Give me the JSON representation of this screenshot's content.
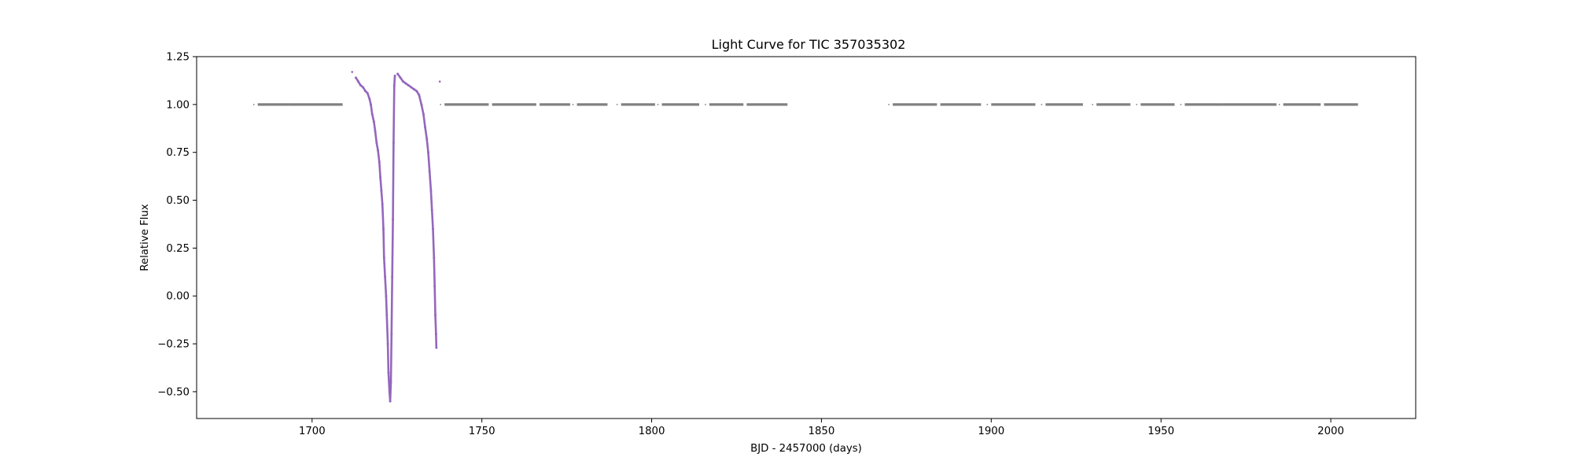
{
  "chart_data": {
    "type": "scatter",
    "title": "Light Curve for TIC 357035302",
    "xlabel": "BJD - 2457000 (days)",
    "ylabel": "Relative Flux",
    "xlim": [
      1666,
      2025
    ],
    "ylim": [
      -0.64,
      1.25
    ],
    "xticks": [
      1700,
      1750,
      1800,
      1850,
      1900,
      1950,
      2000
    ],
    "xtick_labels": [
      "1700",
      "1750",
      "1800",
      "1850",
      "1900",
      "1950",
      "2000"
    ],
    "yticks": [
      1.25,
      1.0,
      0.75,
      0.5,
      0.25,
      0.0,
      -0.25,
      -0.5
    ],
    "ytick_labels": [
      "1.25",
      "1.00",
      "0.75",
      "0.50",
      "0.25",
      "0.00",
      "−0.25",
      "−0.50"
    ],
    "grid": false,
    "legend": "none",
    "series": [
      {
        "color": "#808080",
        "segments": [
          {
            "x_start": 1684,
            "x_end": 1693,
            "y": 1.0
          },
          {
            "x_start": 1693,
            "x_end": 1709,
            "y": 1.0
          },
          {
            "x_start": 1739,
            "x_end": 1752,
            "y": 1.0
          },
          {
            "x_start": 1753,
            "x_end": 1766,
            "y": 1.0
          },
          {
            "x_start": 1767,
            "x_end": 1776,
            "y": 1.0
          },
          {
            "x_start": 1778,
            "x_end": 1787,
            "y": 1.0
          },
          {
            "x_start": 1791,
            "x_end": 1801,
            "y": 1.0
          },
          {
            "x_start": 1803,
            "x_end": 1814,
            "y": 1.0
          },
          {
            "x_start": 1817,
            "x_end": 1827,
            "y": 1.0
          },
          {
            "x_start": 1828,
            "x_end": 1840,
            "y": 1.0
          },
          {
            "x_start": 1871,
            "x_end": 1884,
            "y": 1.0
          },
          {
            "x_start": 1885,
            "x_end": 1897,
            "y": 1.0
          },
          {
            "x_start": 1900,
            "x_end": 1913,
            "y": 1.0
          },
          {
            "x_start": 1916,
            "x_end": 1927,
            "y": 1.0
          },
          {
            "x_start": 1931,
            "x_end": 1941,
            "y": 1.0
          },
          {
            "x_start": 1944,
            "x_end": 1954,
            "y": 1.0
          },
          {
            "x_start": 1957,
            "x_end": 1968,
            "y": 1.0
          },
          {
            "x_start": 1968,
            "x_end": 1984,
            "y": 1.0
          },
          {
            "x_start": 1986,
            "x_end": 1997,
            "y": 1.0
          },
          {
            "x_start": 1998,
            "x_end": 2008,
            "y": 1.0
          }
        ]
      },
      {
        "color": "#9467bd",
        "points": [
          [
            1711.8,
            1.17
          ],
          [
            1712.9,
            1.14
          ],
          [
            1713.6,
            1.12
          ],
          [
            1714.3,
            1.1
          ],
          [
            1715.0,
            1.09
          ],
          [
            1715.7,
            1.07
          ],
          [
            1716.3,
            1.06
          ],
          [
            1716.9,
            1.03
          ],
          [
            1717.3,
            1.0
          ],
          [
            1717.7,
            0.95
          ],
          [
            1718.2,
            0.91
          ],
          [
            1718.6,
            0.86
          ],
          [
            1719.0,
            0.8
          ],
          [
            1719.4,
            0.76
          ],
          [
            1719.8,
            0.7
          ],
          [
            1720.1,
            0.62
          ],
          [
            1720.4,
            0.55
          ],
          [
            1720.7,
            0.48
          ],
          [
            1721.0,
            0.35
          ],
          [
            1721.2,
            0.2
          ],
          [
            1721.5,
            0.1
          ],
          [
            1721.8,
            0.0
          ],
          [
            1722.0,
            -0.1
          ],
          [
            1722.3,
            -0.25
          ],
          [
            1722.5,
            -0.4
          ],
          [
            1722.8,
            -0.5
          ],
          [
            1723.0,
            -0.55
          ],
          [
            1723.2,
            -0.45
          ],
          [
            1723.4,
            -0.2
          ],
          [
            1723.6,
            0.1
          ],
          [
            1723.8,
            0.4
          ],
          [
            1724.0,
            0.8
          ],
          [
            1724.2,
            1.1
          ],
          [
            1724.4,
            1.15
          ],
          [
            1725.2,
            1.16
          ],
          [
            1726.0,
            1.14
          ],
          [
            1726.8,
            1.12
          ],
          [
            1727.6,
            1.11
          ],
          [
            1728.4,
            1.1
          ],
          [
            1729.2,
            1.09
          ],
          [
            1730.0,
            1.08
          ],
          [
            1730.8,
            1.07
          ],
          [
            1731.5,
            1.05
          ],
          [
            1732.2,
            1.0
          ],
          [
            1732.8,
            0.95
          ],
          [
            1733.3,
            0.88
          ],
          [
            1733.8,
            0.82
          ],
          [
            1734.2,
            0.75
          ],
          [
            1734.6,
            0.65
          ],
          [
            1735.0,
            0.55
          ],
          [
            1735.3,
            0.45
          ],
          [
            1735.6,
            0.35
          ],
          [
            1735.9,
            0.2
          ],
          [
            1736.1,
            0.05
          ],
          [
            1736.3,
            -0.1
          ],
          [
            1736.5,
            -0.2
          ],
          [
            1736.6,
            -0.27
          ],
          [
            1737.6,
            1.12
          ]
        ]
      }
    ]
  }
}
